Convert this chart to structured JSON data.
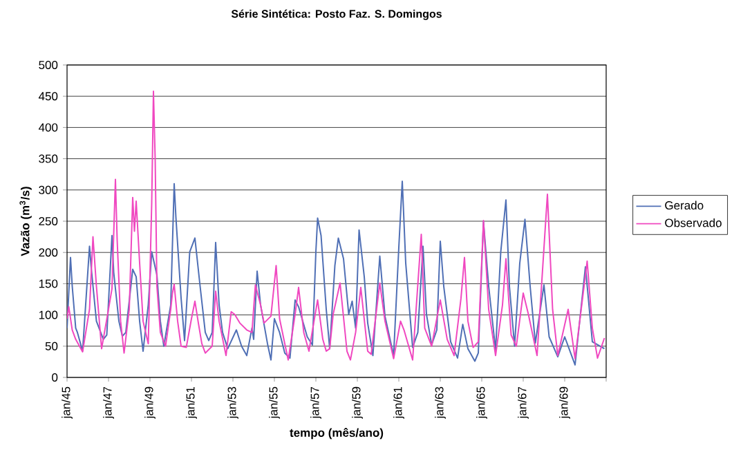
{
  "chart_data": {
    "type": "line",
    "title": "Série Sintética: Posto Faz. S. Domingos",
    "xlabel": "tempo (mês/ano)",
    "ylabel": "Vazão (m$^{3}$/s)",
    "xlim": [
      "1945-01",
      "1971-01"
    ],
    "ylim": [
      0,
      500
    ],
    "yticks": [
      0,
      50,
      100,
      150,
      200,
      250,
      300,
      350,
      400,
      450,
      500
    ],
    "xticks": [
      {
        "value": "1945-01",
        "label": "jan/45"
      },
      {
        "value": "1947-01",
        "label": "jan/47"
      },
      {
        "value": "1949-01",
        "label": "jan/49"
      },
      {
        "value": "1951-01",
        "label": "jan/51"
      },
      {
        "value": "1953-01",
        "label": "jan/53"
      },
      {
        "value": "1955-01",
        "label": "jan/55"
      },
      {
        "value": "1957-01",
        "label": "jan/57"
      },
      {
        "value": "1959-01",
        "label": "jan/59"
      },
      {
        "value": "1961-01",
        "label": "jan/61"
      },
      {
        "value": "1963-01",
        "label": "jan/63"
      },
      {
        "value": "1965-01",
        "label": "jan/65"
      },
      {
        "value": "1967-01",
        "label": "jan/67"
      },
      {
        "value": "1969-01",
        "label": "jan/69"
      },
      {
        "value": "1971-01",
        "label": null
      }
    ],
    "grid": "y",
    "legend": "right",
    "series": [
      {
        "name": "Gerado",
        "color": "#4f6fb5",
        "x": [
          "1945-01",
          "1945-03",
          "1945-04",
          "1945-06",
          "1945-07",
          "1945-10",
          "1946-02",
          "1946-03",
          "1946-06",
          "1946-10",
          "1946-12",
          "1947-03",
          "1947-04",
          "1947-07",
          "1947-09",
          "1947-11",
          "1948-03",
          "1948-05",
          "1948-07",
          "1948-09",
          "1948-12",
          "1949-02",
          "1949-05",
          "1949-07",
          "1949-09",
          "1950-01",
          "1950-03",
          "1950-04",
          "1950-07",
          "1950-09",
          "1950-12",
          "1951-03",
          "1951-06",
          "1951-09",
          "1951-11",
          "1952-01",
          "1952-03",
          "1952-05",
          "1952-07",
          "1952-10",
          "1953-03",
          "1953-06",
          "1953-09",
          "1953-12",
          "1954-01",
          "1954-03",
          "1954-05",
          "1954-09",
          "1954-11",
          "1955-01",
          "1955-04",
          "1955-07",
          "1955-10",
          "1956-01",
          "1956-03",
          "1956-08",
          "1956-11",
          "1957-01",
          "1957-02",
          "1957-04",
          "1957-07",
          "1957-09",
          "1957-12",
          "1958-02",
          "1958-05",
          "1958-08",
          "1958-10",
          "1958-12",
          "1959-02",
          "1959-05",
          "1959-07",
          "1959-10",
          "1960-02",
          "1960-05",
          "1960-10",
          "1961-01",
          "1961-03",
          "1961-05",
          "1961-09",
          "1961-12",
          "1962-03",
          "1962-05",
          "1962-08",
          "1962-11",
          "1963-01",
          "1963-03",
          "1963-07",
          "1963-11",
          "1964-02",
          "1964-05",
          "1964-09",
          "1964-11",
          "1965-02",
          "1965-05",
          "1965-09",
          "1965-12",
          "1966-03",
          "1966-05",
          "1966-08",
          "1966-11",
          "1967-02",
          "1967-05",
          "1967-08",
          "1968-01",
          "1968-04",
          "1968-09",
          "1969-01",
          "1969-07",
          "1970-01",
          "1970-05",
          "1970-12"
        ],
        "values": [
          79,
          192,
          146,
          79,
          72,
          42,
          210,
          175,
          90,
          61,
          68,
          227,
          168,
          90,
          66,
          72,
          173,
          161,
          90,
          42,
          116,
          201,
          164,
          90,
          50,
          116,
          310,
          256,
          127,
          59,
          201,
          223,
          146,
          72,
          59,
          72,
          216,
          116,
          72,
          46,
          76,
          50,
          35,
          79,
          61,
          170,
          116,
          54,
          28,
          94,
          72,
          39,
          31,
          124,
          113,
          65,
          52,
          201,
          255,
          227,
          109,
          46,
          179,
          223,
          190,
          101,
          122,
          79,
          236,
          161,
          87,
          35,
          194,
          98,
          35,
          208,
          314,
          183,
          48,
          72,
          210,
          101,
          52,
          76,
          218,
          146,
          57,
          31,
          85,
          46,
          26,
          39,
          249,
          146,
          44,
          201,
          284,
          146,
          50,
          183,
          253,
          146,
          55,
          148,
          65,
          33,
          65,
          20,
          177,
          57,
          46
        ]
      },
      {
        "name": "Observado",
        "color": "#f048c0",
        "x": [
          "1945-01",
          "1945-02",
          "1945-04",
          "1945-06",
          "1945-10",
          "1946-02",
          "1946-04",
          "1946-06",
          "1946-09",
          "1947-01",
          "1947-03",
          "1947-05",
          "1947-06",
          "1947-08",
          "1947-10",
          "1948-01",
          "1948-03",
          "1948-04",
          "1948-05",
          "1948-07",
          "1948-09",
          "1948-12",
          "1949-02",
          "1949-03",
          "1949-04",
          "1949-05",
          "1949-07",
          "1949-10",
          "1950-01",
          "1950-02",
          "1950-03",
          "1950-05",
          "1950-07",
          "1950-10",
          "1951-01",
          "1951-03",
          "1951-05",
          "1951-07",
          "1951-09",
          "1952-01",
          "1952-03",
          "1952-05",
          "1952-09",
          "1952-12",
          "1953-02",
          "1953-05",
          "1953-09",
          "1953-12",
          "1954-02",
          "1954-05",
          "1954-07",
          "1954-11",
          "1955-02",
          "1955-04",
          "1955-07",
          "1955-09",
          "1956-01",
          "1956-03",
          "1956-06",
          "1956-09",
          "1957-02",
          "1957-05",
          "1957-07",
          "1957-09",
          "1957-11",
          "1958-03",
          "1958-07",
          "1958-09",
          "1958-12",
          "1959-03",
          "1959-07",
          "1959-09",
          "1960-02",
          "1960-05",
          "1960-10",
          "1961-02",
          "1961-04",
          "1961-09",
          "1962-02",
          "1962-04",
          "1962-08",
          "1963-01",
          "1963-05",
          "1963-09",
          "1964-01",
          "1964-03",
          "1964-05",
          "1964-08",
          "1964-11",
          "1965-02",
          "1965-05",
          "1965-09",
          "1966-01",
          "1966-03",
          "1966-06",
          "1966-09",
          "1967-01",
          "1967-04",
          "1967-09",
          "1968-03",
          "1968-06",
          "1968-09",
          "1969-03",
          "1969-07",
          "1970-02",
          "1970-05",
          "1970-08",
          "1970-12"
        ],
        "values": [
          94,
          113,
          76,
          61,
          41,
          109,
          225,
          146,
          46,
          109,
          142,
          317,
          220,
          90,
          39,
          109,
          288,
          234,
          282,
          183,
          90,
          54,
          279,
          458,
          349,
          146,
          72,
          50,
          109,
          135,
          149,
          90,
          50,
          48,
          94,
          122,
          87,
          54,
          39,
          50,
          138,
          90,
          35,
          105,
          101,
          87,
          76,
          72,
          148,
          116,
          87,
          98,
          179,
          94,
          54,
          28,
          101,
          144,
          72,
          42,
          124,
          61,
          42,
          46,
          101,
          151,
          42,
          28,
          72,
          144,
          42,
          37,
          151,
          90,
          30,
          90,
          76,
          28,
          229,
          79,
          50,
          124,
          61,
          35,
          127,
          192,
          90,
          48,
          57,
          251,
          109,
          35,
          116,
          190,
          68,
          50,
          135,
          101,
          35,
          293,
          109,
          35,
          109,
          30,
          186,
          79,
          31,
          63
        ]
      }
    ]
  }
}
